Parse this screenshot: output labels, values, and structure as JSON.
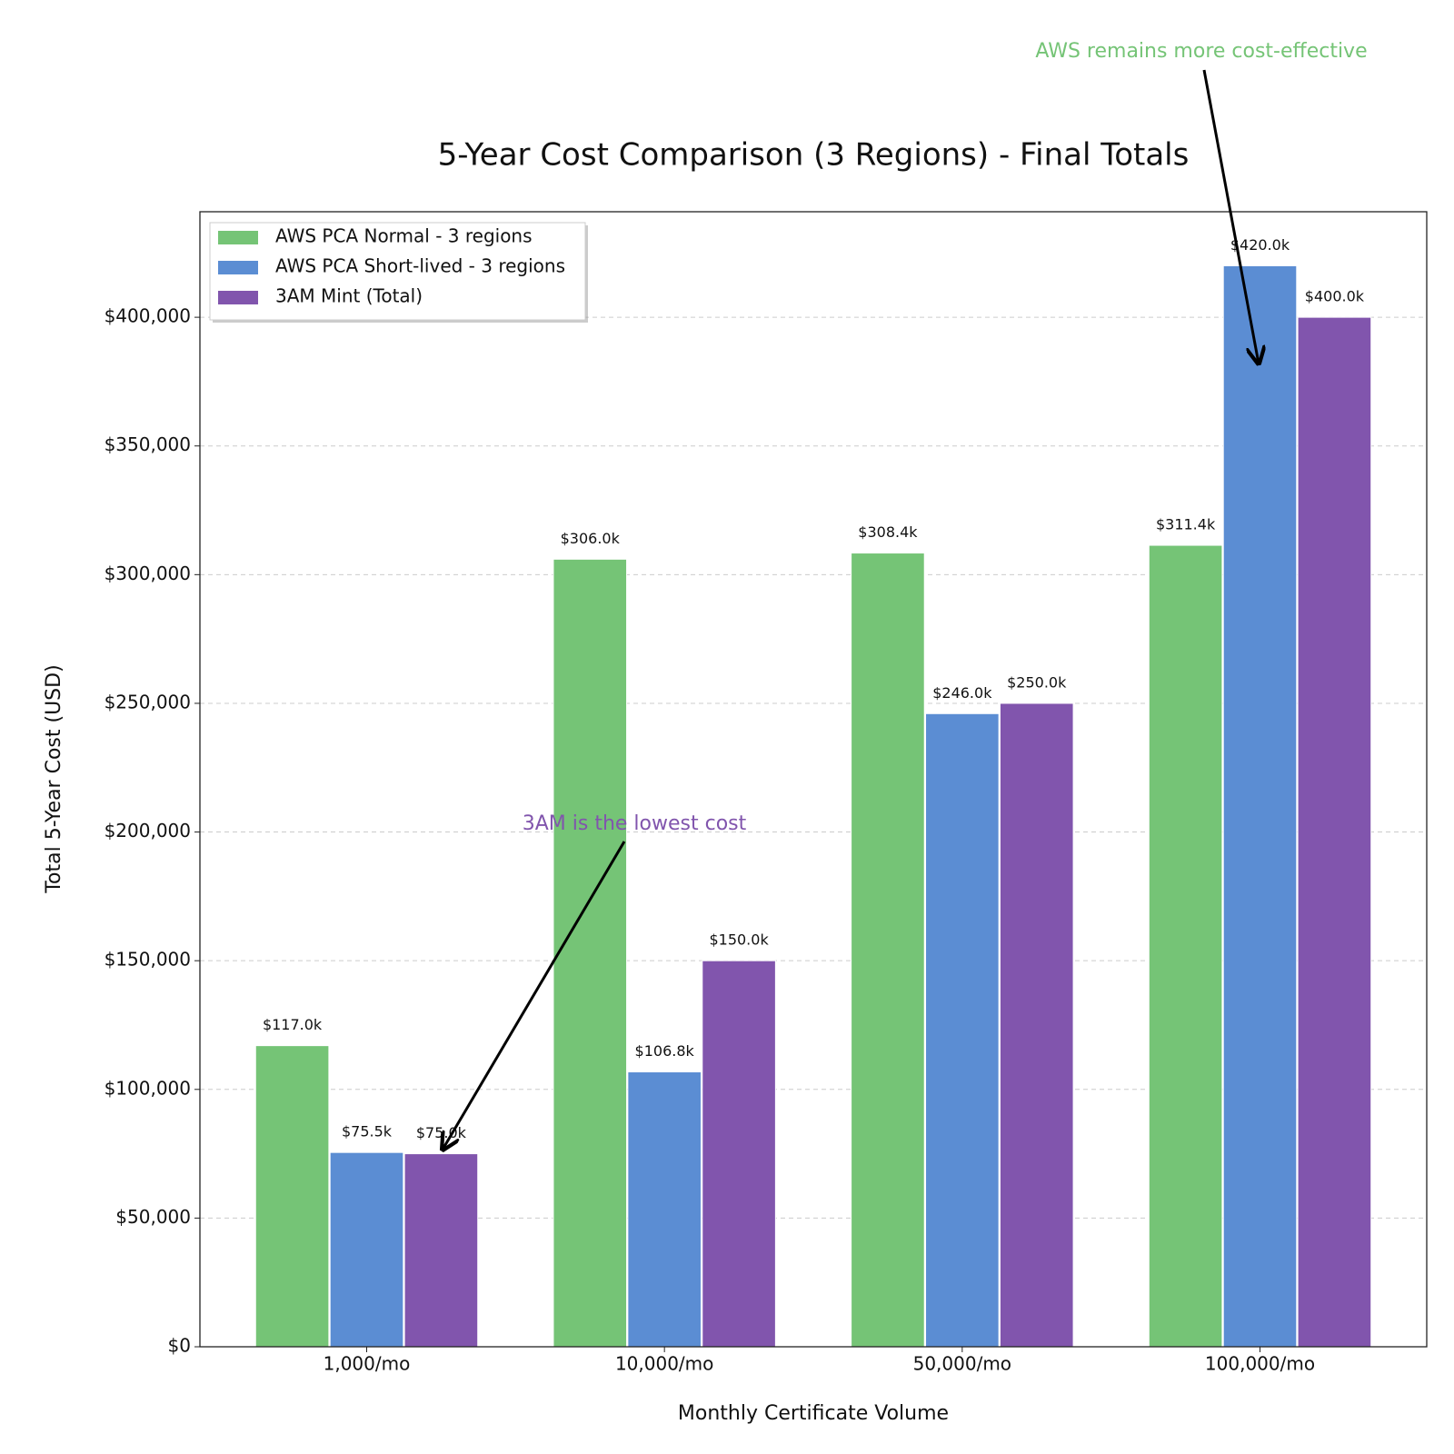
{
  "chart_data": {
    "type": "bar",
    "title": "5-Year Cost Comparison (3 Regions) - Final Totals",
    "xlabel": "Monthly Certificate Volume",
    "ylabel": "Total 5-Year Cost (USD)",
    "categories": [
      "1,000/mo",
      "10,000/mo",
      "50,000/mo",
      "100,000/mo"
    ],
    "series": [
      {
        "name": "AWS PCA Normal - 3 regions",
        "color": "#75c476",
        "values": [
          117000,
          306000,
          308400,
          311400
        ],
        "value_labels": [
          "$117.0k",
          "$306.0k",
          "$308.4k",
          "$311.4k"
        ]
      },
      {
        "name": "AWS PCA Short-lived - 3 regions",
        "color": "#5b8dd3",
        "values": [
          75500,
          106800,
          246000,
          420000
        ],
        "value_labels": [
          "$75.5k",
          "$106.8k",
          "$246.0k",
          "$420.0k"
        ]
      },
      {
        "name": "3AM Mint (Total)",
        "color": "#8155ad",
        "values": [
          75000,
          150000,
          250000,
          400000
        ],
        "value_labels": [
          "$75.0k",
          "$150.0k",
          "$250.0k",
          "$400.0k"
        ]
      }
    ],
    "ylim": [
      0,
      441000
    ],
    "yticks": [
      {
        "value": 0,
        "label": "$0"
      },
      {
        "value": 50000,
        "label": "$50,000"
      },
      {
        "value": 100000,
        "label": "$100,000"
      },
      {
        "value": 150000,
        "label": "$150,000"
      },
      {
        "value": 200000,
        "label": "$200,000"
      },
      {
        "value": 250000,
        "label": "$250,000"
      },
      {
        "value": 300000,
        "label": "$300,000"
      },
      {
        "value": 350000,
        "label": "$350,000"
      },
      {
        "value": 400000,
        "label": "$400,000"
      }
    ],
    "grid": true,
    "legend": "upper left",
    "annotations": [
      {
        "text": "3AM is the lowest cost",
        "color": "#8155ad"
      },
      {
        "text": "AWS remains more cost-effective",
        "color": "#75c476"
      }
    ]
  }
}
